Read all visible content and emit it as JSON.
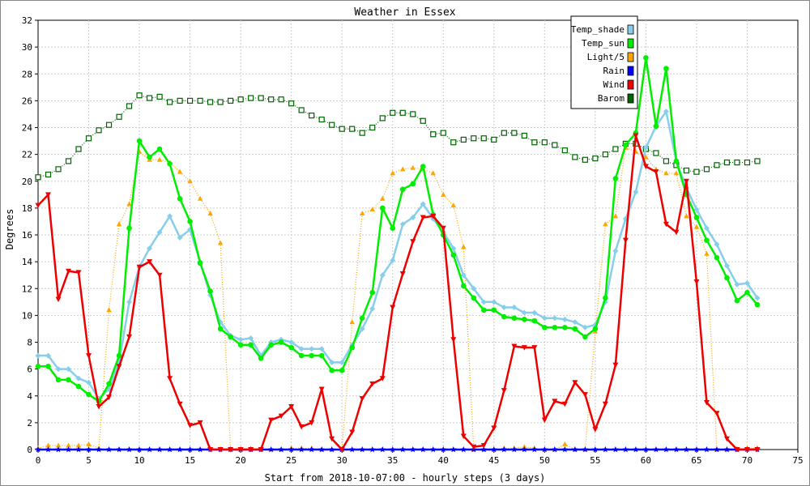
{
  "chart_data": {
    "type": "line",
    "title": "Weather in Essex",
    "xlabel": "Start from 2018-10-07:00 - hourly steps (3 days)",
    "ylabel": "Degrees",
    "xlim": [
      0,
      75
    ],
    "ylim": [
      0,
      32
    ],
    "xticks": [
      0,
      5,
      10,
      15,
      20,
      25,
      30,
      35,
      40,
      45,
      50,
      55,
      60,
      65,
      70,
      75
    ],
    "yticks": [
      0,
      2,
      4,
      6,
      8,
      10,
      12,
      14,
      16,
      18,
      20,
      22,
      24,
      26,
      28,
      30,
      32
    ],
    "grid": true,
    "legend_position": "top-right",
    "x": [
      0,
      1,
      2,
      3,
      4,
      5,
      6,
      7,
      8,
      9,
      10,
      11,
      12,
      13,
      14,
      15,
      16,
      17,
      18,
      19,
      20,
      21,
      22,
      23,
      24,
      25,
      26,
      27,
      28,
      29,
      30,
      31,
      32,
      33,
      34,
      35,
      36,
      37,
      38,
      39,
      40,
      41,
      42,
      43,
      44,
      45,
      46,
      47,
      48,
      49,
      50,
      51,
      52,
      53,
      54,
      55,
      56,
      57,
      58,
      59,
      60,
      61,
      62,
      63,
      64,
      65,
      66,
      67,
      68,
      69,
      70,
      71
    ],
    "series": [
      {
        "name": "Temp_shade",
        "color": "#87ceeb",
        "marker": "diamond",
        "values": [
          7,
          7,
          6,
          6,
          5.3,
          5,
          3.8,
          4.5,
          6.5,
          11,
          13.6,
          15,
          16.2,
          17.4,
          15.8,
          16.4,
          14,
          11.5,
          9.5,
          8.5,
          8.2,
          8.3,
          7,
          8,
          8.2,
          8,
          7.5,
          7.5,
          7.5,
          6.5,
          6.5,
          7.8,
          9,
          10.5,
          13,
          14.1,
          16.8,
          17.3,
          18.3,
          17.2,
          16.2,
          15,
          13,
          12,
          11,
          11,
          10.6,
          10.6,
          10.2,
          10.2,
          9.8,
          9.8,
          9.7,
          9.5,
          9.1,
          9.3,
          11,
          14.8,
          17.2,
          19.2,
          22.5,
          24.1,
          25.2,
          21.5,
          19.5,
          17.9,
          16.5,
          15.3,
          13.7,
          12.3,
          12.4,
          11.3
        ]
      },
      {
        "name": "Temp_sun",
        "color": "#00ee00",
        "marker": "circle",
        "values": [
          6.2,
          6.2,
          5.2,
          5.2,
          4.7,
          4.1,
          3.6,
          4.9,
          7,
          16.5,
          23,
          21.8,
          22.4,
          21.3,
          18.7,
          17,
          13.9,
          11.8,
          9,
          8.4,
          7.8,
          7.8,
          6.8,
          7.8,
          8,
          7.6,
          7,
          7,
          7,
          5.9,
          5.9,
          7.6,
          9.8,
          11.7,
          18,
          16.5,
          19.4,
          19.8,
          21.1,
          17.5,
          16,
          14.5,
          12.2,
          11.3,
          10.4,
          10.4,
          9.9,
          9.8,
          9.7,
          9.6,
          9.1,
          9.1,
          9.1,
          9,
          8.4,
          9,
          11.3,
          20.2,
          22.7,
          23.6,
          29.2,
          24.1,
          28.4,
          21.5,
          19,
          17.3,
          15.6,
          14.3,
          12.8,
          11.1,
          11.7,
          10.8
        ]
      },
      {
        "name": "Light/5",
        "color": "#ffa500",
        "marker": "triangle-up",
        "values": [
          0.1,
          0.3,
          0.3,
          0.3,
          0.3,
          0.4,
          0.1,
          10.4,
          16.8,
          18.3,
          22.2,
          21.6,
          21.6,
          21.4,
          20.7,
          20,
          18.7,
          17.6,
          15.4,
          0,
          0,
          0,
          0,
          0,
          0,
          0.1,
          0.1,
          0.1,
          0,
          0,
          0,
          9.5,
          17.6,
          17.9,
          18.7,
          20.6,
          20.9,
          21,
          20.9,
          20.6,
          19,
          18.2,
          15.1,
          0,
          0,
          0,
          0.1,
          0.1,
          0.2,
          0.1,
          0,
          0,
          0.4,
          0,
          0,
          8.8,
          16.8,
          17.4,
          22.5,
          22.2,
          21.8,
          20.9,
          20.6,
          20.6,
          17.4,
          16.6,
          14.6,
          0,
          0,
          0,
          0.1,
          0.1
        ]
      },
      {
        "name": "Rain",
        "color": "#0000ff",
        "marker": "star",
        "values": [
          0,
          0,
          0,
          0,
          0,
          0,
          0,
          0,
          0,
          0,
          0,
          0,
          0,
          0,
          0,
          0,
          0,
          0,
          0,
          0,
          0,
          0,
          0,
          0,
          0,
          0,
          0,
          0,
          0,
          0,
          0,
          0,
          0,
          0,
          0,
          0,
          0,
          0,
          0,
          0,
          0,
          0,
          0,
          0,
          0,
          0,
          0,
          0,
          0,
          0,
          0,
          0,
          0,
          0,
          0,
          0,
          0,
          0,
          0,
          0,
          0,
          0,
          0,
          0,
          0,
          0,
          0,
          0,
          0,
          0,
          0,
          0
        ]
      },
      {
        "name": "Wind",
        "color": "#ee0000",
        "marker": "triangle-down",
        "values": [
          18.2,
          19,
          11.2,
          13.3,
          13.2,
          7,
          3.2,
          3.9,
          6.2,
          8.4,
          13.6,
          14,
          13,
          5.3,
          3.4,
          1.8,
          2,
          0,
          0,
          0,
          0,
          0,
          0,
          2.2,
          2.5,
          3.2,
          1.7,
          2,
          4.5,
          0.8,
          0,
          1.3,
          3.8,
          4.9,
          5.3,
          10.6,
          13.1,
          15.5,
          17.3,
          17.4,
          16.5,
          8.2,
          1,
          0.2,
          0.3,
          1.6,
          4.4,
          7.7,
          7.6,
          7.6,
          2.2,
          3.6,
          3.4,
          5,
          4.1,
          1.5,
          3.4,
          6.3,
          15.6,
          23.4,
          21.1,
          20.7,
          16.8,
          16.2,
          20,
          12.5,
          3.5,
          2.7,
          0.8,
          0,
          0,
          0
        ]
      },
      {
        "name": "Barom",
        "color": "#006400",
        "marker": "square",
        "values": [
          20.3,
          20.5,
          20.9,
          21.5,
          22.4,
          23.2,
          23.8,
          24.2,
          24.8,
          25.6,
          26.4,
          26.2,
          26.3,
          25.9,
          26,
          26,
          26,
          25.9,
          25.9,
          26,
          26.1,
          26.2,
          26.2,
          26.1,
          26.1,
          25.8,
          25.3,
          24.9,
          24.6,
          24.2,
          23.9,
          23.9,
          23.6,
          24,
          24.7,
          25.1,
          25.1,
          25,
          24.5,
          23.5,
          23.6,
          22.9,
          23.1,
          23.2,
          23.2,
          23.1,
          23.6,
          23.6,
          23.4,
          22.9,
          22.9,
          22.7,
          22.3,
          21.8,
          21.6,
          21.7,
          22,
          22.4,
          22.8,
          22.8,
          22.4,
          22.1,
          21.5,
          21.2,
          20.8,
          20.7,
          20.9,
          21.2,
          21.4,
          21.4,
          21.4,
          21.5
        ]
      }
    ]
  }
}
